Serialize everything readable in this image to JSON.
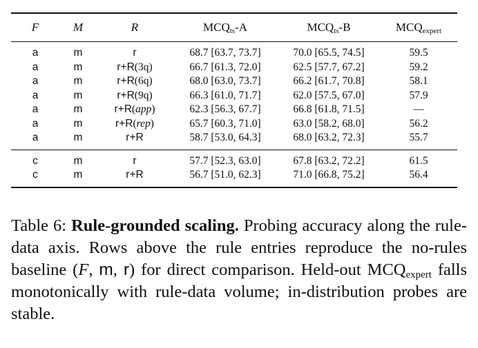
{
  "table": {
    "headers": {
      "f": "F",
      "m": "M",
      "r": "R",
      "a_main": "MCQ",
      "a_sub": "ts",
      "a_suffix": "-A",
      "b_main": "MCQ",
      "b_sub": "ts",
      "b_suffix": "-B",
      "e_main": "MCQ",
      "e_sub": "expert"
    },
    "group1": [
      {
        "f": "a",
        "m": "m",
        "r_pre": "r",
        "r_arg": "",
        "r_post": "",
        "a": "68.7 [63.7, 73.7]",
        "b": "70.0 [65.5, 74.5]",
        "e": "59.5"
      },
      {
        "f": "a",
        "m": "m",
        "r_pre": "r+R",
        "r_arg": "(3q)",
        "r_post": "",
        "a": "66.7 [61.3, 72.0]",
        "b": "62.5 [57.7, 67.2]",
        "e": "59.2"
      },
      {
        "f": "a",
        "m": "m",
        "r_pre": "r+R",
        "r_arg": "(6q)",
        "r_post": "",
        "a": "68.0 [63.0, 73.7]",
        "b": "66.2 [61.7, 70.8]",
        "e": "58.1"
      },
      {
        "f": "a",
        "m": "m",
        "r_pre": "r+R",
        "r_arg": "(9q)",
        "r_post": "",
        "a": "66.3 [61.0, 71.7]",
        "b": "62.0 [57.5, 67.0]",
        "e": "57.9"
      },
      {
        "f": "a",
        "m": "m",
        "r_pre": "r+R",
        "r_arg": "(",
        "r_it": "app",
        "r_post": ")",
        "a": "62.3 [56.3, 67.7]",
        "b": "66.8 [61.8, 71.5]",
        "e": "—"
      },
      {
        "f": "a",
        "m": "m",
        "r_pre": "r+R",
        "r_arg": "(",
        "r_it": "rep",
        "r_post": ")",
        "a": "65.7 [60.3, 71.0]",
        "b": "63.0 [58.2, 68.0]",
        "e": "56.2"
      },
      {
        "f": "a",
        "m": "m",
        "r_pre": "r+R",
        "r_arg": "",
        "r_post": "",
        "a": "58.7 [53.0, 64.3]",
        "b": "68.0 [63.2, 72.3]",
        "e": "55.7"
      }
    ],
    "group2": [
      {
        "f": "c",
        "m": "m",
        "r_pre": "r",
        "r_arg": "",
        "r_post": "",
        "a": "57.7 [52.3, 63.0]",
        "b": "67.8 [63.2, 72.2]",
        "e": "61.5"
      },
      {
        "f": "c",
        "m": "m",
        "r_pre": "r+R",
        "r_arg": "",
        "r_post": "",
        "a": "56.7 [51.0, 62.3]",
        "b": "71.0 [66.8, 75.2]",
        "e": "56.4"
      }
    ]
  },
  "caption": {
    "label": "Table 6:",
    "title": "Rule-grounded scaling.",
    "text1": "Probing accuracy along the rule-data axis. Rows above the rule entries reproduce the no-rules baseline (",
    "math_f": "F",
    "comma1": ", ",
    "math_m": "m",
    "comma2": ", ",
    "math_r": "r",
    "text2": ") for direct comparison. Held-out MCQ",
    "sub": "expert",
    "text3": " falls monotonically with rule-data volume; in-distribution probes are stable."
  }
}
